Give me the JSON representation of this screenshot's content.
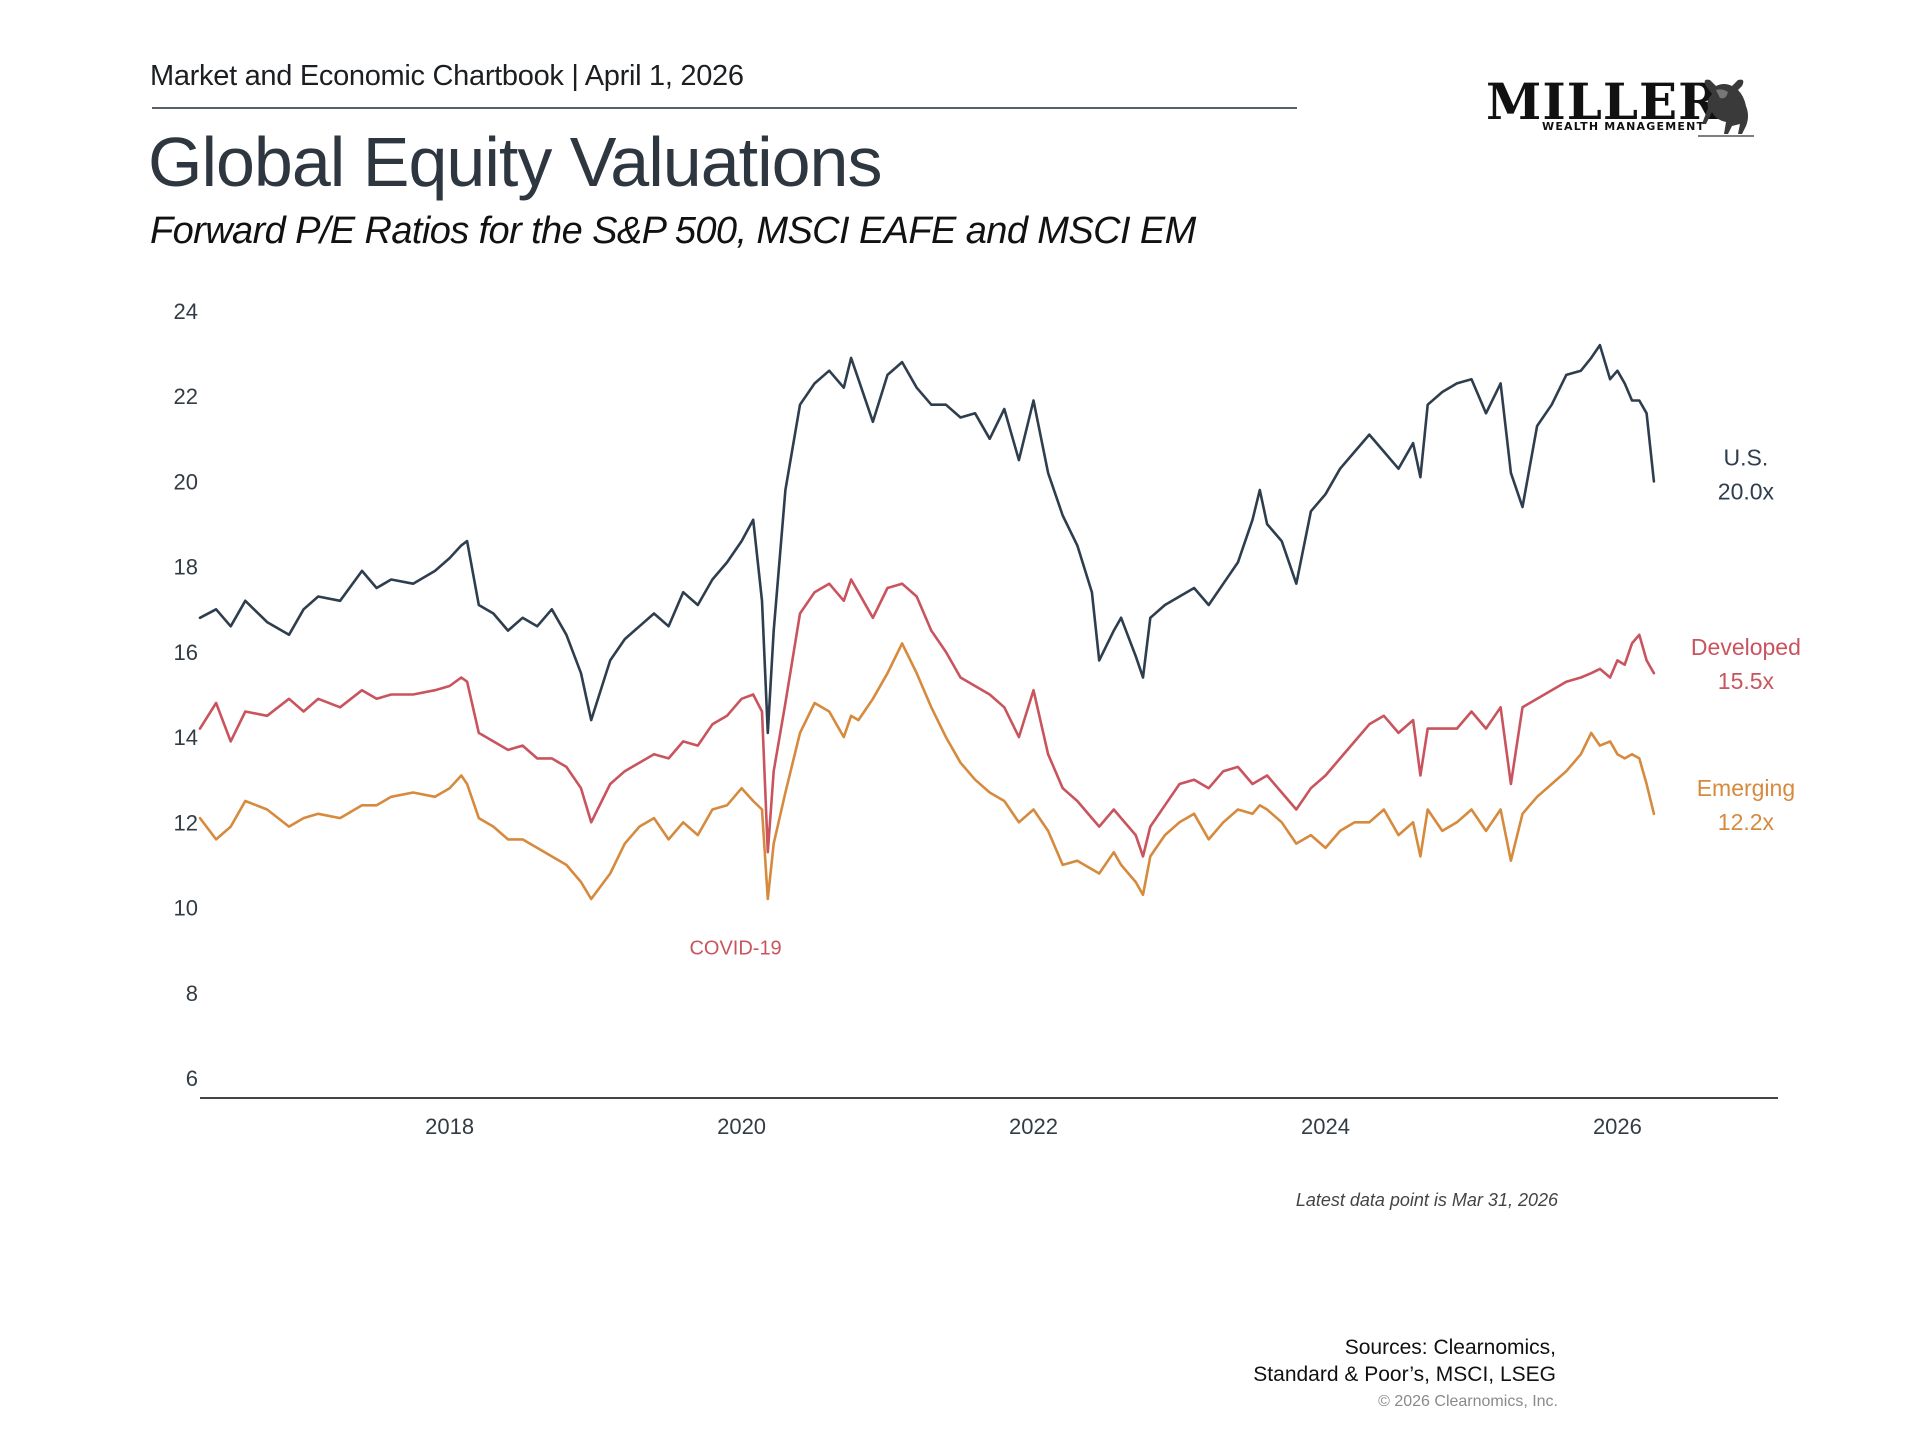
{
  "header": {
    "publication": "Market and Economic Chartbook | April 1, 2026",
    "title": "Global Equity Valuations",
    "subtitle": "Forward P/E Ratios for the S&P 500, MSCI EAFE and MSCI EM"
  },
  "logo": {
    "name": "MILLER",
    "tagline": "WEALTH MANAGEMENT",
    "icon": "bull-icon"
  },
  "footer": {
    "note": "Latest data point is Mar 31, 2026",
    "sources_line1": "Sources: Clearnomics,",
    "sources_line2": "Standard & Poor’s, MSCI, LSEG",
    "copyright": "© 2026 Clearnomics, Inc."
  },
  "chart_data": {
    "type": "line",
    "title": "Global Equity Valuations",
    "xlabel": "",
    "ylabel": "Forward P/E",
    "ylim": [
      6,
      24
    ],
    "xlim": [
      2016.29,
      2027.1
    ],
    "yticks": [
      6,
      8,
      10,
      12,
      14,
      16,
      18,
      20,
      22,
      24
    ],
    "xticks": [
      2018,
      2020,
      2022,
      2024,
      2026
    ],
    "grid": false,
    "legend": "end-of-line labels (right)",
    "annotations": [
      {
        "text": "COVID-19",
        "x": 2020.0,
        "y": 8.9,
        "color": "#c9545e"
      }
    ],
    "series": [
      {
        "name": "U.S.",
        "end_label": "U.S.",
        "end_value_label": "20.0x",
        "color": "#2e3e4e",
        "x": [
          2016.29,
          2016.4,
          2016.5,
          2016.6,
          2016.75,
          2016.9,
          2017.0,
          2017.1,
          2017.25,
          2017.4,
          2017.5,
          2017.6,
          2017.75,
          2017.9,
          2018.0,
          2018.08,
          2018.12,
          2018.2,
          2018.3,
          2018.4,
          2018.5,
          2018.6,
          2018.7,
          2018.8,
          2018.9,
          2018.97,
          2019.1,
          2019.2,
          2019.3,
          2019.4,
          2019.5,
          2019.6,
          2019.7,
          2019.8,
          2019.9,
          2020.0,
          2020.08,
          2020.14,
          2020.18,
          2020.22,
          2020.3,
          2020.4,
          2020.5,
          2020.6,
          2020.7,
          2020.75,
          2020.8,
          2020.9,
          2021.0,
          2021.1,
          2021.2,
          2021.3,
          2021.4,
          2021.5,
          2021.6,
          2021.7,
          2021.8,
          2021.9,
          2022.0,
          2022.1,
          2022.2,
          2022.3,
          2022.4,
          2022.45,
          2022.55,
          2022.6,
          2022.7,
          2022.75,
          2022.8,
          2022.9,
          2023.0,
          2023.1,
          2023.2,
          2023.3,
          2023.4,
          2023.5,
          2023.55,
          2023.6,
          2023.7,
          2023.8,
          2023.9,
          2024.0,
          2024.1,
          2024.2,
          2024.3,
          2024.4,
          2024.5,
          2024.6,
          2024.65,
          2024.7,
          2024.8,
          2024.9,
          2025.0,
          2025.1,
          2025.2,
          2025.27,
          2025.35,
          2025.45,
          2025.55,
          2025.65,
          2025.75,
          2025.82,
          2025.88,
          2025.95,
          2026.0,
          2026.05,
          2026.1,
          2026.15,
          2026.2,
          2026.25
        ],
        "y": [
          16.8,
          17.0,
          16.6,
          17.2,
          16.7,
          16.4,
          17.0,
          17.3,
          17.2,
          17.9,
          17.5,
          17.7,
          17.6,
          17.9,
          18.2,
          18.5,
          18.6,
          17.1,
          16.9,
          16.5,
          16.8,
          16.6,
          17.0,
          16.4,
          15.5,
          14.4,
          15.8,
          16.3,
          16.6,
          16.9,
          16.6,
          17.4,
          17.1,
          17.7,
          18.1,
          18.6,
          19.1,
          17.2,
          14.1,
          16.5,
          19.8,
          21.8,
          22.3,
          22.6,
          22.2,
          22.9,
          22.4,
          21.4,
          22.5,
          22.8,
          22.2,
          21.8,
          21.8,
          21.5,
          21.6,
          21.0,
          21.7,
          20.5,
          21.9,
          20.2,
          19.2,
          18.5,
          17.4,
          15.8,
          16.5,
          16.8,
          15.9,
          15.4,
          16.8,
          17.1,
          17.3,
          17.5,
          17.1,
          17.6,
          18.1,
          19.1,
          19.8,
          19.0,
          18.6,
          17.6,
          19.3,
          19.7,
          20.3,
          20.7,
          21.1,
          20.7,
          20.3,
          20.9,
          20.1,
          21.8,
          22.1,
          22.3,
          22.4,
          21.6,
          22.3,
          20.2,
          19.4,
          21.3,
          21.8,
          22.5,
          22.6,
          22.9,
          23.2,
          22.4,
          22.6,
          22.3,
          21.9,
          21.9,
          21.6,
          20.0
        ],
        "last_value": 20.0
      },
      {
        "name": "Developed",
        "end_label": "Developed",
        "end_value_label": "15.5x",
        "color": "#c9545e",
        "x": [
          2016.29,
          2016.4,
          2016.5,
          2016.6,
          2016.75,
          2016.9,
          2017.0,
          2017.1,
          2017.25,
          2017.4,
          2017.5,
          2017.6,
          2017.75,
          2017.9,
          2018.0,
          2018.08,
          2018.12,
          2018.2,
          2018.3,
          2018.4,
          2018.5,
          2018.6,
          2018.7,
          2018.8,
          2018.9,
          2018.97,
          2019.1,
          2019.2,
          2019.3,
          2019.4,
          2019.5,
          2019.6,
          2019.7,
          2019.8,
          2019.9,
          2020.0,
          2020.08,
          2020.14,
          2020.18,
          2020.22,
          2020.3,
          2020.4,
          2020.5,
          2020.6,
          2020.7,
          2020.75,
          2020.8,
          2020.9,
          2021.0,
          2021.1,
          2021.2,
          2021.3,
          2021.4,
          2021.5,
          2021.6,
          2021.7,
          2021.8,
          2021.9,
          2022.0,
          2022.1,
          2022.2,
          2022.3,
          2022.4,
          2022.45,
          2022.55,
          2022.6,
          2022.7,
          2022.75,
          2022.8,
          2022.9,
          2023.0,
          2023.1,
          2023.2,
          2023.3,
          2023.4,
          2023.5,
          2023.55,
          2023.6,
          2023.7,
          2023.8,
          2023.9,
          2024.0,
          2024.1,
          2024.2,
          2024.3,
          2024.4,
          2024.5,
          2024.6,
          2024.65,
          2024.7,
          2024.8,
          2024.9,
          2025.0,
          2025.1,
          2025.2,
          2025.27,
          2025.35,
          2025.45,
          2025.55,
          2025.65,
          2025.75,
          2025.82,
          2025.88,
          2025.95,
          2026.0,
          2026.05,
          2026.1,
          2026.15,
          2026.2,
          2026.25
        ],
        "y": [
          14.2,
          14.8,
          13.9,
          14.6,
          14.5,
          14.9,
          14.6,
          14.9,
          14.7,
          15.1,
          14.9,
          15.0,
          15.0,
          15.1,
          15.2,
          15.4,
          15.3,
          14.1,
          13.9,
          13.7,
          13.8,
          13.5,
          13.5,
          13.3,
          12.8,
          12.0,
          12.9,
          13.2,
          13.4,
          13.6,
          13.5,
          13.9,
          13.8,
          14.3,
          14.5,
          14.9,
          15.0,
          14.6,
          11.3,
          13.2,
          14.8,
          16.9,
          17.4,
          17.6,
          17.2,
          17.7,
          17.4,
          16.8,
          17.5,
          17.6,
          17.3,
          16.5,
          16.0,
          15.4,
          15.2,
          15.0,
          14.7,
          14.0,
          15.1,
          13.6,
          12.8,
          12.5,
          12.1,
          11.9,
          12.3,
          12.1,
          11.7,
          11.2,
          11.9,
          12.4,
          12.9,
          13.0,
          12.8,
          13.2,
          13.3,
          12.9,
          13.0,
          13.1,
          12.7,
          12.3,
          12.8,
          13.1,
          13.5,
          13.9,
          14.3,
          14.5,
          14.1,
          14.4,
          13.1,
          14.2,
          14.2,
          14.2,
          14.6,
          14.2,
          14.7,
          12.9,
          14.7,
          14.9,
          15.1,
          15.3,
          15.4,
          15.5,
          15.6,
          15.4,
          15.8,
          15.7,
          16.2,
          16.4,
          15.8,
          15.5
        ],
        "last_value": 15.5
      },
      {
        "name": "Emerging",
        "end_label": "Emerging",
        "end_value_label": "12.2x",
        "color": "#d68a3e",
        "x": [
          2016.29,
          2016.4,
          2016.5,
          2016.6,
          2016.75,
          2016.9,
          2017.0,
          2017.1,
          2017.25,
          2017.4,
          2017.5,
          2017.6,
          2017.75,
          2017.9,
          2018.0,
          2018.08,
          2018.12,
          2018.2,
          2018.3,
          2018.4,
          2018.5,
          2018.6,
          2018.7,
          2018.8,
          2018.9,
          2018.97,
          2019.1,
          2019.2,
          2019.3,
          2019.4,
          2019.5,
          2019.6,
          2019.7,
          2019.8,
          2019.9,
          2020.0,
          2020.08,
          2020.14,
          2020.18,
          2020.22,
          2020.3,
          2020.4,
          2020.5,
          2020.6,
          2020.7,
          2020.75,
          2020.8,
          2020.9,
          2021.0,
          2021.1,
          2021.2,
          2021.3,
          2021.4,
          2021.5,
          2021.6,
          2021.7,
          2021.8,
          2021.9,
          2022.0,
          2022.1,
          2022.2,
          2022.3,
          2022.4,
          2022.45,
          2022.55,
          2022.6,
          2022.7,
          2022.75,
          2022.8,
          2022.9,
          2023.0,
          2023.1,
          2023.2,
          2023.3,
          2023.4,
          2023.5,
          2023.55,
          2023.6,
          2023.7,
          2023.8,
          2023.9,
          2024.0,
          2024.1,
          2024.2,
          2024.3,
          2024.4,
          2024.5,
          2024.6,
          2024.65,
          2024.7,
          2024.8,
          2024.9,
          2025.0,
          2025.1,
          2025.2,
          2025.27,
          2025.35,
          2025.45,
          2025.55,
          2025.65,
          2025.75,
          2025.82,
          2025.88,
          2025.95,
          2026.0,
          2026.05,
          2026.1,
          2026.15,
          2026.2,
          2026.25
        ],
        "y": [
          12.1,
          11.6,
          11.9,
          12.5,
          12.3,
          11.9,
          12.1,
          12.2,
          12.1,
          12.4,
          12.4,
          12.6,
          12.7,
          12.6,
          12.8,
          13.1,
          12.9,
          12.1,
          11.9,
          11.6,
          11.6,
          11.4,
          11.2,
          11.0,
          10.6,
          10.2,
          10.8,
          11.5,
          11.9,
          12.1,
          11.6,
          12.0,
          11.7,
          12.3,
          12.4,
          12.8,
          12.5,
          12.3,
          10.2,
          11.5,
          12.7,
          14.1,
          14.8,
          14.6,
          14.0,
          14.5,
          14.4,
          14.9,
          15.5,
          16.2,
          15.5,
          14.7,
          14.0,
          13.4,
          13.0,
          12.7,
          12.5,
          12.0,
          12.3,
          11.8,
          11.0,
          11.1,
          10.9,
          10.8,
          11.3,
          11.0,
          10.6,
          10.3,
          11.2,
          11.7,
          12.0,
          12.2,
          11.6,
          12.0,
          12.3,
          12.2,
          12.4,
          12.3,
          12.0,
          11.5,
          11.7,
          11.4,
          11.8,
          12.0,
          12.0,
          12.3,
          11.7,
          12.0,
          11.2,
          12.3,
          11.8,
          12.0,
          12.3,
          11.8,
          12.3,
          11.1,
          12.2,
          12.6,
          12.9,
          13.2,
          13.6,
          14.1,
          13.8,
          13.9,
          13.6,
          13.5,
          13.6,
          13.5,
          12.9,
          12.2
        ],
        "last_value": 12.2
      }
    ]
  }
}
